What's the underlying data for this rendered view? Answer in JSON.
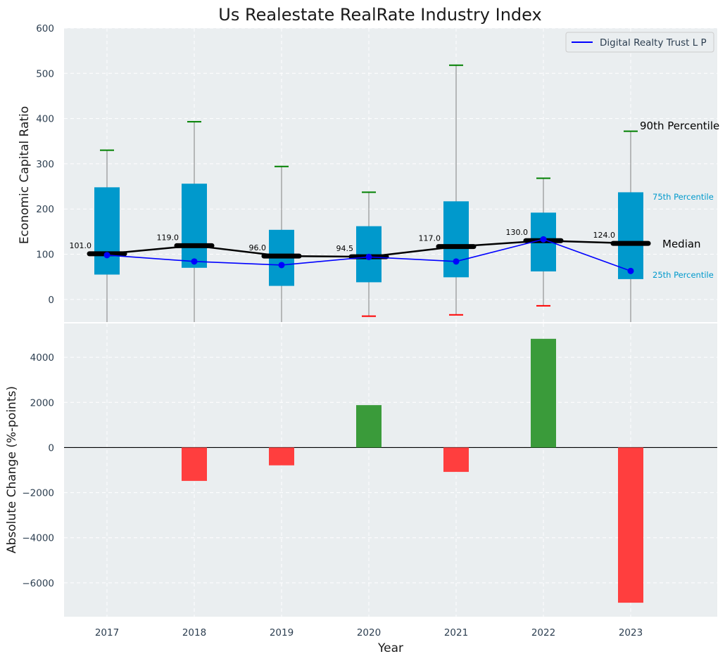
{
  "chart_data": [
    {
      "type": "box",
      "title": "Us Realestate RealRate Industry Index",
      "xlabel": "",
      "ylabel": "Economic Capital Ratio",
      "ylim": [
        -50,
        600
      ],
      "yticks": [
        0,
        100,
        200,
        300,
        400,
        500,
        600
      ],
      "categories": [
        "2017",
        "2018",
        "2019",
        "2020",
        "2021",
        "2022",
        "2023"
      ],
      "p25": [
        55,
        70,
        30,
        38,
        49,
        62,
        45
      ],
      "p75": [
        248,
        256,
        154,
        162,
        217,
        192,
        237
      ],
      "median": [
        101.0,
        119.0,
        96.0,
        94.5,
        117.0,
        130.0,
        124.0
      ],
      "median_labels": [
        "101.0",
        "119.0",
        "96.0",
        "94.5",
        "117.0",
        "130.0",
        "124.0"
      ],
      "p90": [
        330,
        393,
        294,
        237,
        518,
        268,
        372
      ],
      "p10": [
        null,
        null,
        null,
        -37,
        -34,
        -14,
        null
      ],
      "series": [
        {
          "name": "Digital Realty Trust L P",
          "values": [
            98,
            84,
            76,
            94,
            84,
            133,
            63
          ]
        }
      ],
      "annotations": {
        "p90": "90th Percentile",
        "p75": "75th Percentile",
        "median": "Median",
        "p25": "25th Percentile"
      },
      "legend_position": "top-right",
      "grid": true
    },
    {
      "type": "bar",
      "xlabel": "Year",
      "ylabel": "Absolute Change (%-points)",
      "ylim": [
        -7500,
        5500
      ],
      "yticks": [
        -6000,
        -4000,
        -2000,
        0,
        2000,
        4000
      ],
      "ytick_labels": [
        "−6000",
        "−4000",
        "−2000",
        "0",
        "2000",
        "4000"
      ],
      "categories": [
        "2017",
        "2018",
        "2019",
        "2020",
        "2021",
        "2022",
        "2023"
      ],
      "values": [
        0,
        -1480,
        -790,
        1880,
        -1080,
        4820,
        -6880
      ],
      "grid": true
    }
  ],
  "colors": {
    "panel_bg": "#eaeef0",
    "box": "#0099cc",
    "series_line": "#0000ff",
    "median_line": "#000000",
    "p90_cap": "#008000",
    "p10_cap": "#ff0000",
    "whisker": "#808080",
    "bar_positive": "#3a9b3a",
    "bar_negative": "#ff3e3e",
    "p75_text": "#0099cc",
    "p25_text": "#0099cc"
  }
}
